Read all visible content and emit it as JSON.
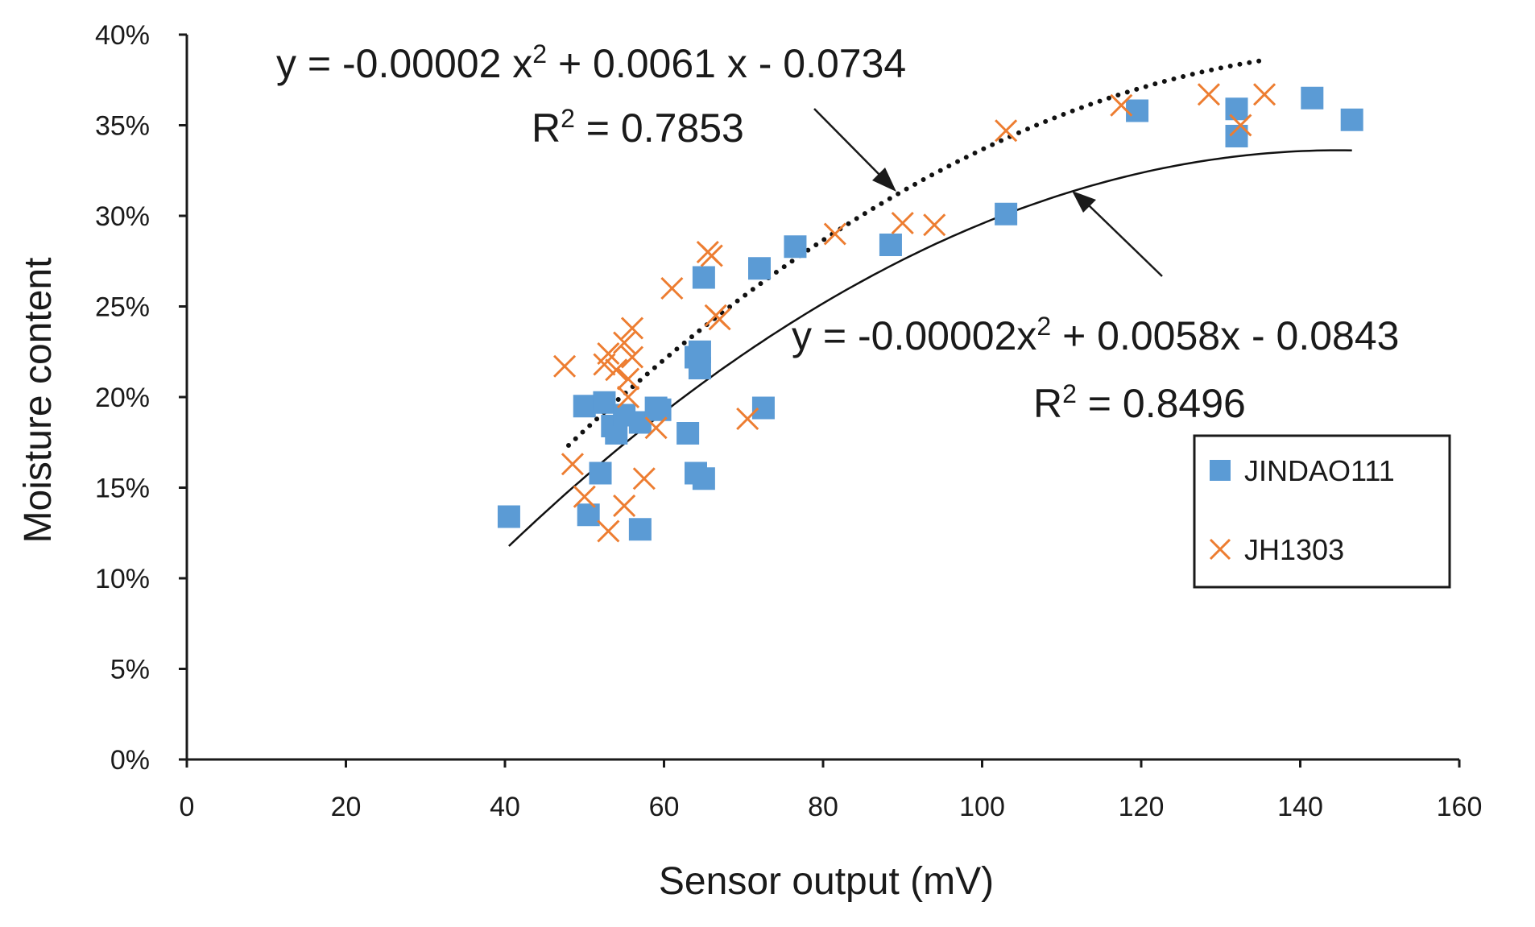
{
  "chart_data": {
    "type": "scatter",
    "xlabel": "Sensor output (mV)",
    "ylabel": "Moisture content",
    "xlim": [
      0,
      160
    ],
    "ylim": [
      0,
      0.4
    ],
    "x_ticks": [
      0,
      20,
      40,
      60,
      80,
      100,
      120,
      140,
      160
    ],
    "x_tick_labels": [
      "0",
      "20",
      "40",
      "60",
      "80",
      "100",
      "120",
      "140",
      "160"
    ],
    "y_ticks": [
      0,
      0.05,
      0.1,
      0.15,
      0.2,
      0.25,
      0.3,
      0.35,
      0.4
    ],
    "y_tick_labels": [
      "0%",
      "5%",
      "10%",
      "15%",
      "20%",
      "25%",
      "30%",
      "35%",
      "40%"
    ],
    "grid": false,
    "legend_position": "right",
    "series": [
      {
        "name": "JINDAO111",
        "marker": "square",
        "color": "#5b9bd5",
        "points": [
          [
            40.5,
            0.134
          ],
          [
            50.5,
            0.135
          ],
          [
            52,
            0.158
          ],
          [
            57,
            0.127
          ],
          [
            50,
            0.195
          ],
          [
            52.5,
            0.197
          ],
          [
            53.5,
            0.184
          ],
          [
            54,
            0.18
          ],
          [
            55,
            0.19
          ],
          [
            57,
            0.186
          ],
          [
            59,
            0.194
          ],
          [
            59.5,
            0.193
          ],
          [
            63,
            0.18
          ],
          [
            64,
            0.158
          ],
          [
            65,
            0.155
          ],
          [
            64.5,
            0.225
          ],
          [
            64,
            0.222
          ],
          [
            64.5,
            0.216
          ],
          [
            65,
            0.266
          ],
          [
            72,
            0.271
          ],
          [
            72.5,
            0.194
          ],
          [
            76.5,
            0.283
          ],
          [
            88.5,
            0.284
          ],
          [
            103,
            0.301
          ],
          [
            119.5,
            0.358
          ],
          [
            132,
            0.359
          ],
          [
            132,
            0.344
          ],
          [
            141.5,
            0.365
          ],
          [
            146.5,
            0.353
          ]
        ]
      },
      {
        "name": "JH1303",
        "marker": "x",
        "color": "#ed7d31",
        "points": [
          [
            47.5,
            0.217
          ],
          [
            48.5,
            0.163
          ],
          [
            50,
            0.145
          ],
          [
            53,
            0.126
          ],
          [
            55,
            0.14
          ],
          [
            52.5,
            0.218
          ],
          [
            53,
            0.224
          ],
          [
            54,
            0.215
          ],
          [
            55,
            0.23
          ],
          [
            56,
            0.238
          ],
          [
            55.5,
            0.21
          ],
          [
            56,
            0.222
          ],
          [
            55.5,
            0.2
          ],
          [
            57.5,
            0.155
          ],
          [
            59,
            0.183
          ],
          [
            61,
            0.26
          ],
          [
            65.5,
            0.28
          ],
          [
            66,
            0.278
          ],
          [
            66.5,
            0.245
          ],
          [
            67,
            0.243
          ],
          [
            70.5,
            0.188
          ],
          [
            81.5,
            0.29
          ],
          [
            90,
            0.296
          ],
          [
            94,
            0.295
          ],
          [
            103,
            0.347
          ],
          [
            117.5,
            0.361
          ],
          [
            128.5,
            0.367
          ],
          [
            132.5,
            0.35
          ],
          [
            135.5,
            0.367
          ]
        ]
      }
    ],
    "trendlines": [
      {
        "series": "JH1303",
        "style": "dotted",
        "type": "polynomial",
        "coefficients": [
          -2e-05,
          0.0061,
          -0.0734
        ],
        "x_range": [
          48,
          135
        ],
        "equation_prefix": "y = -0.00002 x",
        "equation_sup": "2",
        "equation_suffix": " + 0.0061 x - 0.0734",
        "r2_prefix": "R",
        "r2_sup": "2",
        "r2_suffix": " = 0.7853"
      },
      {
        "series": "JINDAO111",
        "style": "solid",
        "type": "polynomial",
        "coefficients": [
          -2e-05,
          0.0058,
          -0.0843
        ],
        "x_range": [
          40.5,
          146.5
        ],
        "equation_prefix": "y = -0.00002x",
        "equation_sup": "2",
        "equation_suffix": " + 0.0058x - 0.0843",
        "r2_prefix": "R",
        "r2_sup": "2",
        "r2_suffix": " = 0.8496"
      }
    ]
  },
  "legend": {
    "items": [
      {
        "label": "JINDAO111"
      },
      {
        "label": "JH1303"
      }
    ]
  }
}
